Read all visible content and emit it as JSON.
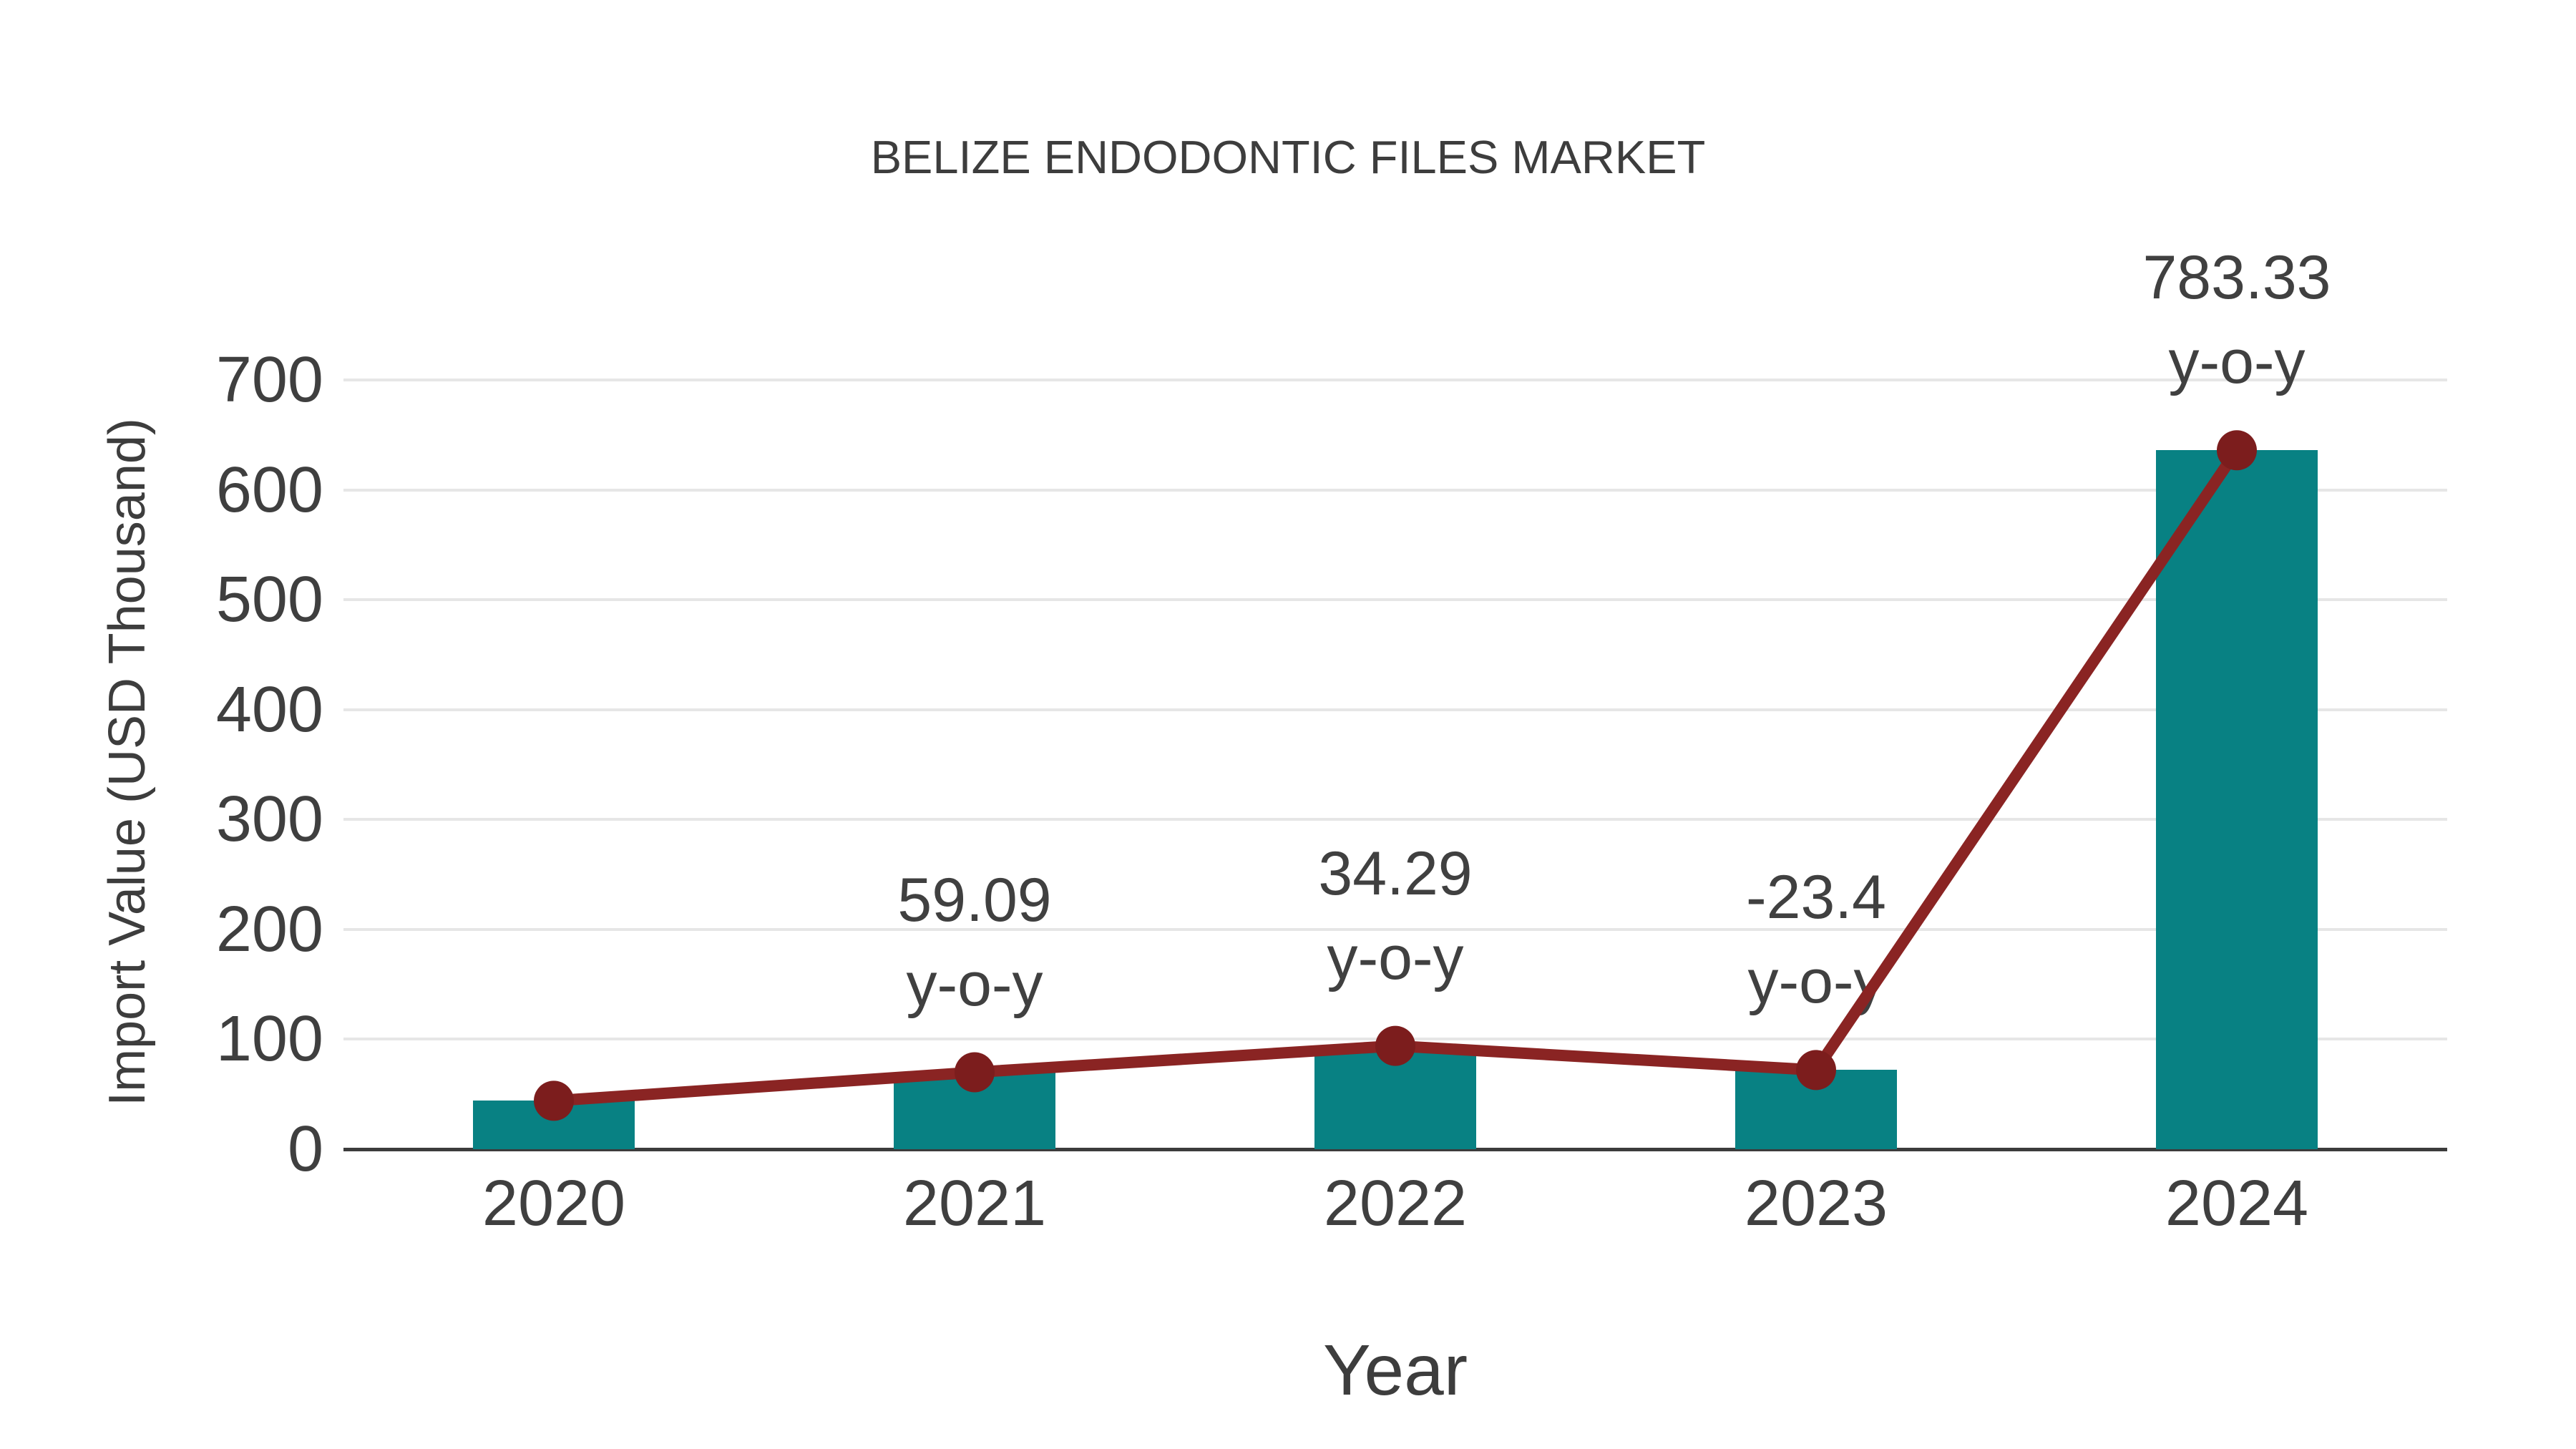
{
  "chart_data": {
    "type": "bar",
    "combo": "bar with line markers tracking bar tops",
    "title": "BELIZE ENDODONTIC FILES MARKET",
    "xlabel": "Year",
    "ylabel": "Import Value (USD Thousand)",
    "categories": [
      "2020",
      "2021",
      "2022",
      "2023",
      "2024"
    ],
    "series": [
      {
        "name": "Import Value",
        "type": "bar",
        "values": [
          44,
          70,
          94,
          72,
          636
        ]
      },
      {
        "name": "y-o-y trend line",
        "type": "line",
        "values": [
          44,
          70,
          94,
          72,
          636
        ]
      }
    ],
    "yoy_labels": [
      "",
      "59.09",
      "34.29",
      "-23.4",
      "783.33"
    ],
    "yoy_suffix": "y-o-y",
    "yticks": [
      0,
      100,
      200,
      300,
      400,
      500,
      600,
      700
    ],
    "ylim": [
      0,
      700
    ],
    "grid": "horizontal only",
    "legend": "none",
    "colors": {
      "bar": "#088183",
      "line": "#8a2423",
      "marker": "#7c1d1d",
      "grid": "#e6e6e6",
      "axis": "#3c3c3c",
      "text": "#404040"
    }
  }
}
